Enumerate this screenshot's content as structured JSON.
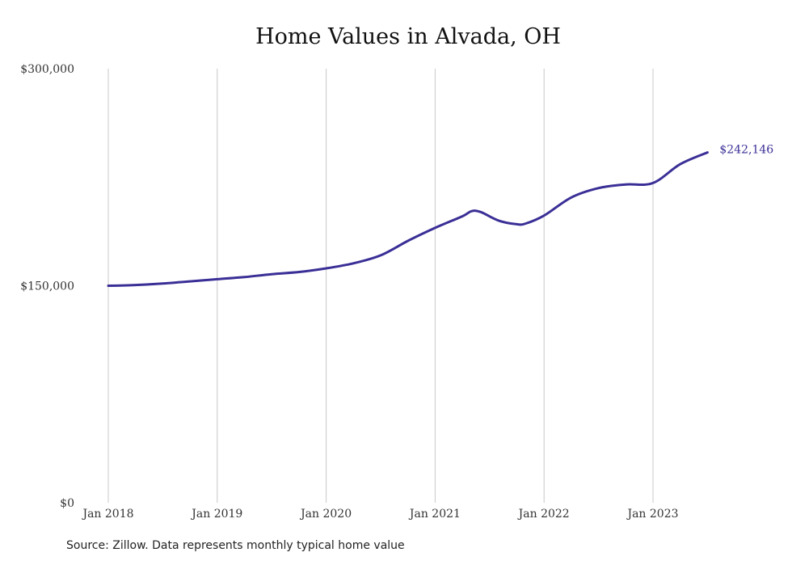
{
  "chart_data": {
    "type": "line",
    "title": "Home Values in Alvada, OH",
    "xlabel": "",
    "ylabel": "",
    "x_ticks": [
      "Jan 2018",
      "Jan 2019",
      "Jan 2020",
      "Jan 2021",
      "Jan 2022",
      "Jan 2023"
    ],
    "y_ticks": [
      "$0",
      "$150,000",
      "$300,000"
    ],
    "y_tick_values": [
      0,
      150000,
      300000
    ],
    "ylim": [
      0,
      300000
    ],
    "xlim": [
      "2018-01",
      "2023-07"
    ],
    "grid": "vertical",
    "line_color": "#3a2f96",
    "series": [
      {
        "end_label": "$242,146",
        "x": [
          "2018-01",
          "2018-04",
          "2018-07",
          "2018-10",
          "2019-01",
          "2019-04",
          "2019-07",
          "2019-10",
          "2020-01",
          "2020-04",
          "2020-07",
          "2020-10",
          "2021-01",
          "2021-04",
          "2021-05",
          "2021-06",
          "2021-08",
          "2021-10",
          "2021-11",
          "2022-01",
          "2022-04",
          "2022-07",
          "2022-10",
          "2023-01",
          "2023-04",
          "2023-07"
        ],
        "values": [
          150000,
          150500,
          151500,
          153000,
          154500,
          156000,
          158000,
          159500,
          162000,
          165500,
          171000,
          181000,
          190000,
          198000,
          201500,
          201000,
          195000,
          192500,
          193000,
          198500,
          211000,
          217500,
          220000,
          221000,
          234000,
          242146
        ]
      }
    ]
  },
  "footer": {
    "source": "Source: Zillow. Data represents monthly typical home value"
  }
}
